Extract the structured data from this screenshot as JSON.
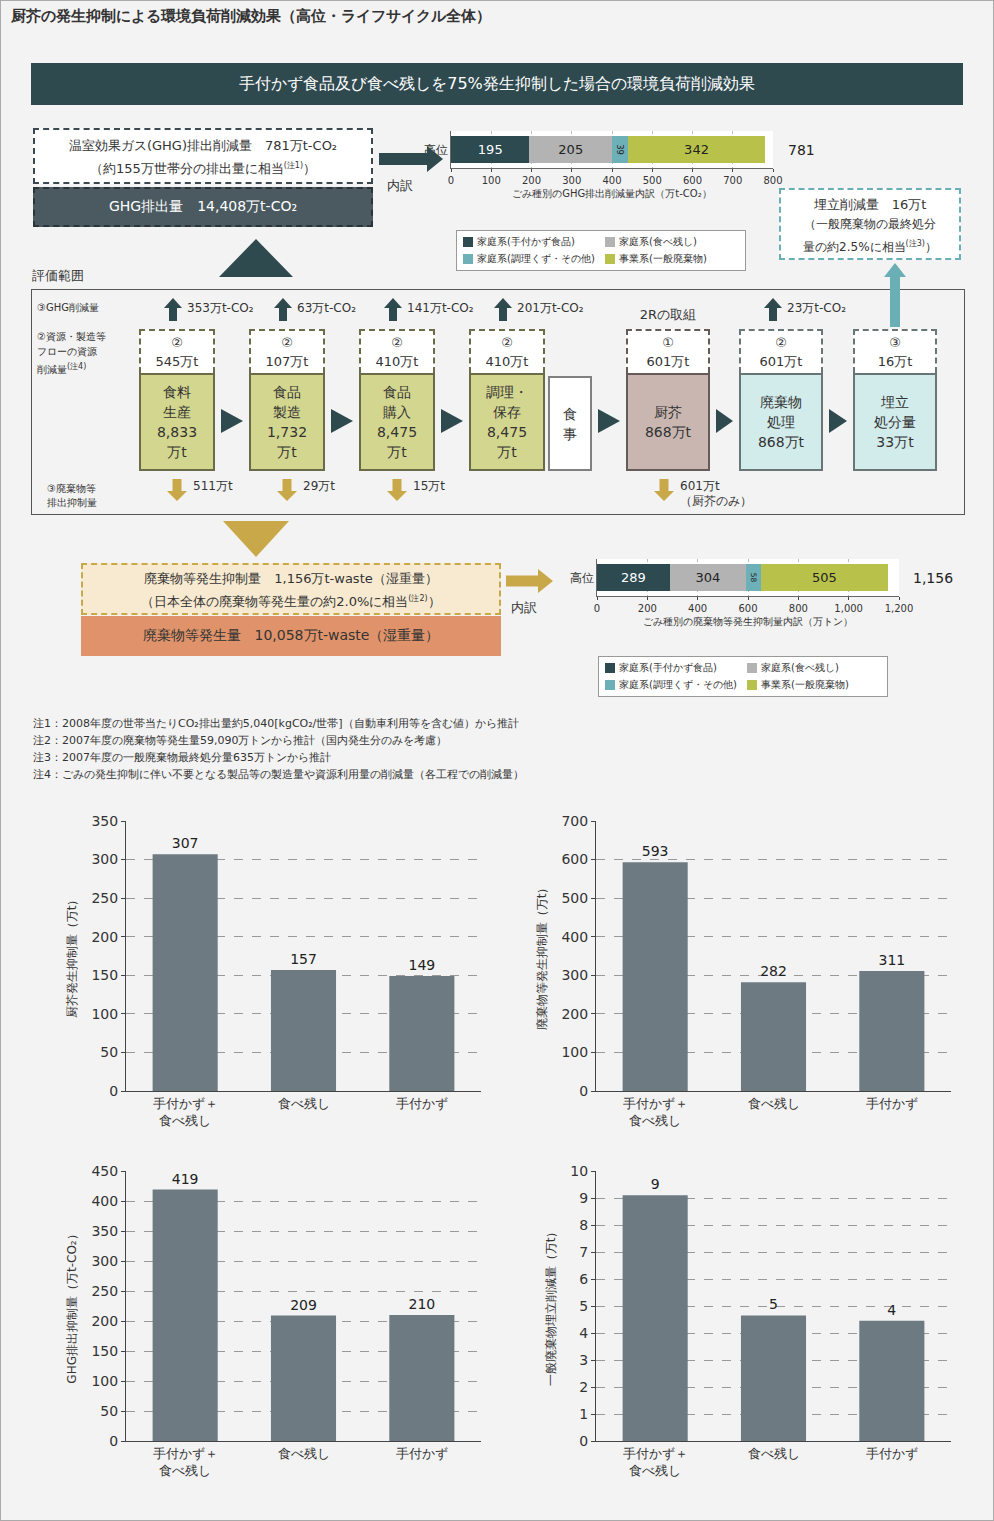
{
  "title": "厨芥の発生抑制による環境負荷削減効果（高位・ライフサイクル全体）",
  "banner": "手付かず食品及び食べ残しを75%発生抑制した場合の環境負荷削減効果",
  "ghg_reduction": {
    "line1": "温室効果ガス(GHG)排出削減量　781万t-CO₂",
    "line2": "（約155万世帯分の排出量に相当",
    "line2_sup": "(注1)",
    "line2_end": "）"
  },
  "ghg_total": "GHG排出量　14,408万t-CO₂",
  "breakdown_label": "内訳",
  "landfill_reduction": {
    "line1": "埋立削減量　16万t",
    "line2": "（一般廃棄物の最終処分",
    "line3": "量の約2.5%に相当",
    "line3_sup": "(注3)",
    "line3_end": "）"
  },
  "scope_label": "評価範囲",
  "row_labels": {
    "ghg": [
      "③GHG削減量"
    ],
    "resource": [
      "②資源・製造等",
      "フローの資源",
      "削減量"
    ],
    "resource_sup": "(注4)",
    "waste": [
      "③廃棄物等",
      "排出抑制量"
    ]
  },
  "stages": [
    {
      "lines": [
        "食料",
        "生産",
        "8,833",
        "万t"
      ],
      "badge": "②",
      "reduction": "545万t",
      "ghg": "353万t-CO₂",
      "waste": [
        "511万t"
      ],
      "color": "#d3d68e"
    },
    {
      "lines": [
        "食品",
        "製造",
        "1,732",
        "万t"
      ],
      "badge": "②",
      "reduction": "107万t",
      "ghg": "63万t-CO₂",
      "waste": [
        "29万t"
      ],
      "color": "#d3d68e"
    },
    {
      "lines": [
        "食品",
        "購入",
        "8,475",
        "万t"
      ],
      "badge": "②",
      "reduction": "410万t",
      "ghg": "141万t-CO₂",
      "waste": [
        "15万t"
      ],
      "color": "#d3d68e"
    },
    {
      "lines": [
        "調理・",
        "保存",
        "8,475",
        "万t"
      ],
      "badge": "②",
      "reduction": "410万t",
      "ghg": "201万t-CO₂",
      "color": "#d3d68e"
    },
    {
      "lines": [
        "食",
        "事"
      ],
      "color": "#ffffff"
    },
    {
      "lines": [
        "厨芥",
        "868万t"
      ],
      "header": "2Rの取組",
      "badge": "①",
      "reduction": "601万t",
      "waste": [
        "601万t",
        "（厨芥のみ）"
      ],
      "color": "#c9b6b1"
    },
    {
      "lines": [
        "廃棄物",
        "処理",
        "868万t"
      ],
      "badge": "②",
      "reduction": "601万t",
      "ghg": "23万t-CO₂",
      "color": "#d2ebeb"
    },
    {
      "lines": [
        "埋立",
        "処分量",
        "33万t"
      ],
      "badge": "③",
      "reduction": "16万t",
      "color": "#d2ebeb"
    }
  ],
  "waste_reduction": {
    "line1": "廃棄物等発生抑制量　1,156万t-waste（湿重量）",
    "line2": "（日本全体の廃棄物等発生量の約2.0%に相当",
    "line2_sup": "(注2)",
    "line2_end": "）"
  },
  "waste_total": "廃棄物等発生量　10,058万t-waste（湿重量）",
  "notes": [
    "注1：2008年度の世帯当たりCO₂排出量約5,040[kgCO₂/世帯]（自動車利用等を含む値）から推計",
    "注2：2007年度の廃棄物等発生量59,090万トンから推計（国内発生分のみを考慮）",
    "注3：2007年度の一般廃棄物最終処分量635万トンから推計",
    "注4：ごみの発生抑制に伴い不要となる製品等の製造量や資源利用量の削減量（各工程での削減量）"
  ],
  "chart_data": [
    {
      "type": "bar",
      "orientation": "horizontal",
      "stacked": true,
      "data_labels": true,
      "categories": [
        "高位"
      ],
      "series": [
        {
          "name": "家庭系(手付かず食品)",
          "color": "#2d4a51",
          "values": [
            195
          ]
        },
        {
          "name": "家庭系(食べ残し)",
          "color": "#b3b3b3",
          "values": [
            205
          ]
        },
        {
          "name": "家庭系(調理くず・その他)",
          "color": "#6eb0b8",
          "values": [
            39
          ]
        },
        {
          "name": "事業系(一般廃棄物)",
          "color": "#b8c24a",
          "values": [
            342
          ]
        }
      ],
      "annotations": [
        "781"
      ],
      "xlim": [
        0,
        800
      ],
      "xticks": [
        0,
        100,
        200,
        300,
        400,
        500,
        600,
        700,
        800
      ],
      "x_label": "ごみ種別のGHG排出削減量内訳（万t-CO₂）",
      "grid": true,
      "legend": "bottom"
    },
    {
      "type": "bar",
      "orientation": "horizontal",
      "stacked": true,
      "data_labels": true,
      "categories": [
        "高位"
      ],
      "series": [
        {
          "name": "家庭系(手付かず食品)",
          "color": "#2d4a51",
          "values": [
            289
          ]
        },
        {
          "name": "家庭系(食べ残し)",
          "color": "#b3b3b3",
          "values": [
            304
          ]
        },
        {
          "name": "家庭系(調理くず・その他)",
          "color": "#6eb0b8",
          "values": [
            58
          ]
        },
        {
          "name": "事業系(一般廃棄物)",
          "color": "#b8c24a",
          "values": [
            505
          ]
        }
      ],
      "annotations": [
        "1,156"
      ],
      "xlim": [
        0,
        1200
      ],
      "xticks": [
        0,
        200,
        400,
        600,
        800,
        {
          "value": 1000,
          "label": "1,000"
        },
        {
          "value": 1200,
          "label": "1,200"
        }
      ],
      "x_label": "ごみ種別の廃棄物等発生抑制量内訳（万トン）",
      "grid": true,
      "legend": "bottom"
    },
    {
      "type": "bar",
      "data_labels": true,
      "color": "#6d7a82",
      "categories": [
        "手付かず＋食べ残し",
        "食べ残し",
        "手付かず"
      ],
      "values": [
        307,
        157,
        149
      ],
      "ylim": [
        0,
        350
      ],
      "yticks": [
        0,
        50,
        100,
        150,
        200,
        250,
        300,
        350
      ],
      "y_label": "厨芥発生抑制量（万t）",
      "grid": true
    },
    {
      "type": "bar",
      "data_labels": true,
      "color": "#6d7a82",
      "categories": [
        "手付かず＋食べ残し",
        "食べ残し",
        "手付かず"
      ],
      "values": [
        593,
        282,
        311
      ],
      "ylim": [
        0,
        700
      ],
      "yticks": [
        0,
        100,
        200,
        300,
        400,
        500,
        600,
        700
      ],
      "y_label": "廃棄物等発生抑制量（万t）",
      "grid": true
    },
    {
      "type": "bar",
      "data_labels": true,
      "color": "#6d7a82",
      "categories": [
        "手付かず＋食べ残し",
        "食べ残し",
        "手付かず"
      ],
      "values": [
        419,
        209,
        210
      ],
      "ylim": [
        0,
        450
      ],
      "yticks": [
        0,
        50,
        100,
        150,
        200,
        250,
        300,
        350,
        400,
        450
      ],
      "y_label": "GHG排出抑制量（万t-CO₂）",
      "grid": true
    },
    {
      "type": "bar",
      "data_labels": true,
      "color": "#6d7a82",
      "categories": [
        "手付かず＋食べ残し",
        "食べ残し",
        "手付かず"
      ],
      "values": [
        9.1,
        4.65,
        4.45
      ],
      "value_labels": [
        "9",
        "5",
        "4"
      ],
      "ylim": [
        0,
        10
      ],
      "yticks": [
        0,
        1,
        2,
        3,
        4,
        5,
        6,
        7,
        8,
        9,
        10
      ],
      "y_label": "一般廃棄物埋立削減量（万t）",
      "grid": true
    }
  ]
}
